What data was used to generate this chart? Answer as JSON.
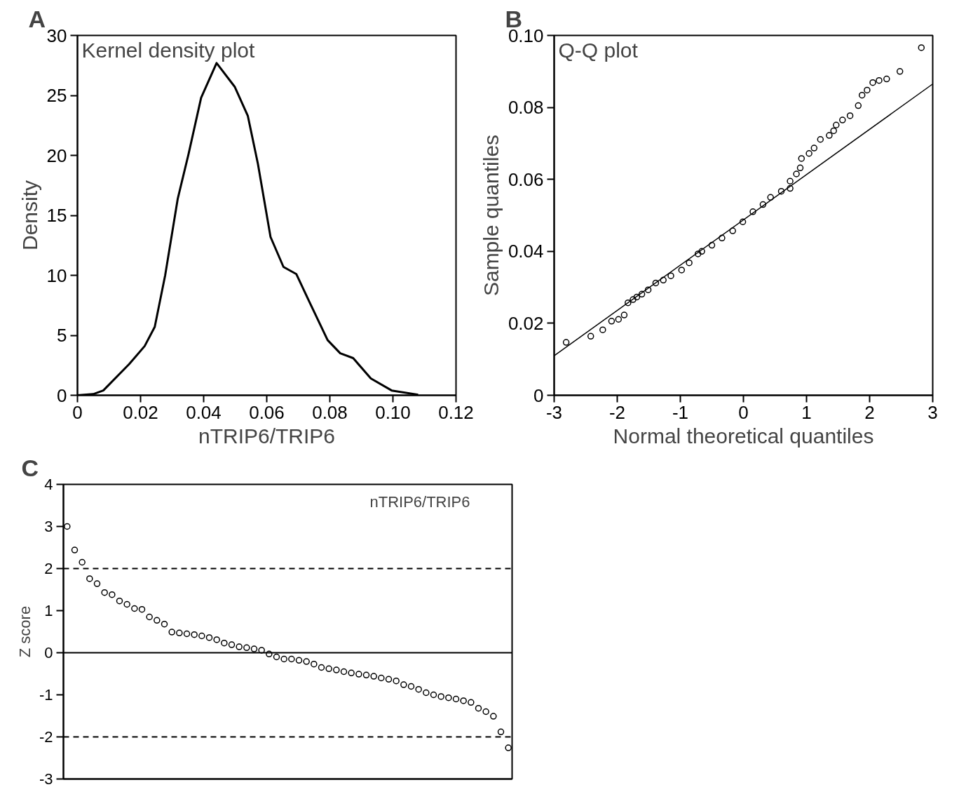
{
  "chart_data": [
    {
      "type": "line",
      "title": "A",
      "xlabel": "nTRIP6/TRIP6",
      "ylabel": "Density",
      "annotations": [
        "Kernel density plot"
      ],
      "x": [
        0,
        0.005,
        0.0082,
        0.0164,
        0.0213,
        0.0245,
        0.0278,
        0.0318,
        0.0352,
        0.0392,
        0.0441,
        0.0499,
        0.054,
        0.0572,
        0.0612,
        0.0653,
        0.0694,
        0.0735,
        0.0793,
        0.0833,
        0.0874,
        0.093,
        0.0996,
        0.108
      ],
      "series": [
        {
          "color": "#000000",
          "values": [
            0,
            0.1,
            0.4,
            2.6,
            4.1,
            5.7,
            10.0,
            16.4,
            20.1,
            24.8,
            27.7,
            25.7,
            23.3,
            19.3,
            13.2,
            10.7,
            10.1,
            7.8,
            4.6,
            3.5,
            3.1,
            1.4,
            0.4,
            0.05
          ]
        }
      ],
      "xlim": [
        0,
        0.12
      ],
      "ylim": [
        0,
        30
      ],
      "xticks": [
        0,
        0.02,
        0.04,
        0.06,
        0.08,
        {
          "value": 0.1,
          "label": "0.10"
        },
        0.12
      ],
      "yticks": [
        0,
        5,
        10,
        15,
        20,
        25,
        30
      ],
      "grid": false,
      "line_style": "solid",
      "marker": "none"
    },
    {
      "type": "scatter",
      "title": "B",
      "xlabel": "Normal theoretical quantiles",
      "ylabel": "Sample quantiles",
      "annotations": [
        "Q-Q plot"
      ],
      "series": [
        {
          "type": "scatter",
          "color": "#000000",
          "marker": "circle",
          "x": [
            -2.81,
            -2.42,
            -2.23,
            -2.09,
            -1.98,
            -1.89,
            -1.83,
            -1.75,
            -1.69,
            -1.61,
            -1.51,
            -1.39,
            -1.27,
            -1.15,
            -0.98,
            -0.86,
            -0.72,
            -0.66,
            -0.5,
            -0.34,
            -0.17,
            -0.01,
            0.15,
            0.31,
            0.43,
            0.6,
            0.74,
            0.74,
            0.84,
            0.9,
            0.92,
            1.04,
            1.12,
            1.22,
            1.36,
            1.43,
            1.47,
            1.57,
            1.69,
            1.82,
            1.88,
            1.96,
            2.05,
            2.15,
            2.27,
            2.48,
            2.82
          ],
          "values": [
            0.0147,
            0.0164,
            0.0182,
            0.0206,
            0.0211,
            0.0223,
            0.0257,
            0.0266,
            0.0273,
            0.0281,
            0.0293,
            0.0312,
            0.032,
            0.0332,
            0.0348,
            0.0368,
            0.0393,
            0.04,
            0.0417,
            0.0437,
            0.0457,
            0.0482,
            0.051,
            0.053,
            0.055,
            0.0567,
            0.0575,
            0.0595,
            0.0615,
            0.0632,
            0.0658,
            0.0672,
            0.0687,
            0.0711,
            0.0722,
            0.0735,
            0.0751,
            0.0765,
            0.0777,
            0.0805,
            0.0834,
            0.0848,
            0.0869,
            0.0875,
            0.0879,
            0.09,
            0.0966
          ]
        },
        {
          "type": "line",
          "color": "#000000",
          "line_style": "solid",
          "x": [
            -3,
            3
          ],
          "values": [
            0.011,
            0.0865
          ]
        }
      ],
      "xlim": [
        -3,
        3
      ],
      "ylim": [
        0,
        0.1
      ],
      "xticks": [
        -3,
        -2,
        -1,
        0,
        1,
        2,
        3
      ],
      "yticks": [
        0,
        0.02,
        0.04,
        0.06,
        0.08,
        {
          "value": 0.1,
          "label": "0.10"
        }
      ],
      "grid": false
    },
    {
      "type": "scatter",
      "title": "C",
      "ylabel": "Z score",
      "annotations": [
        "nTRIP6/TRIP6"
      ],
      "marker": "circle",
      "tick_labels": "y",
      "categories": [
        null,
        null,
        null,
        null,
        null,
        null,
        null,
        null,
        null,
        null,
        null,
        null,
        null,
        null,
        null,
        null,
        null,
        null,
        null,
        null,
        null,
        null,
        null,
        null,
        null,
        null,
        null,
        null,
        null,
        null,
        null,
        null,
        null,
        null,
        null,
        null,
        null,
        null,
        null,
        null,
        null,
        null,
        null,
        null,
        null,
        null,
        null,
        null,
        null,
        null,
        null,
        null,
        null,
        null,
        null,
        null,
        null,
        null,
        null,
        null
      ],
      "series": [
        {
          "color": "#000000",
          "values": [
            3.0,
            2.44,
            2.15,
            1.76,
            1.64,
            1.43,
            1.38,
            1.23,
            1.15,
            1.05,
            1.03,
            0.85,
            0.77,
            0.68,
            0.49,
            0.47,
            0.45,
            0.43,
            0.4,
            0.36,
            0.31,
            0.23,
            0.19,
            0.14,
            0.12,
            0.09,
            0.06,
            -0.03,
            -0.1,
            -0.15,
            -0.15,
            -0.18,
            -0.21,
            -0.27,
            -0.35,
            -0.38,
            -0.41,
            -0.45,
            -0.48,
            -0.51,
            -0.53,
            -0.56,
            -0.6,
            -0.63,
            -0.67,
            -0.76,
            -0.8,
            -0.87,
            -0.95,
            -1.0,
            -1.04,
            -1.07,
            -1.1,
            -1.14,
            -1.18,
            -1.32,
            -1.4,
            -1.51,
            -1.88,
            -2.26
          ]
        }
      ],
      "ylim": [
        -3,
        4
      ],
      "yticks": [
        -3,
        -2,
        -1,
        0,
        1,
        2,
        3,
        4
      ],
      "grid": false,
      "ref_lines": [
        {
          "axis": "y",
          "value": 2,
          "color": "#000000",
          "line_style": "dashed"
        },
        {
          "axis": "y",
          "value": 0,
          "color": "#000000",
          "line_style": "solid"
        },
        {
          "axis": "y",
          "value": -2,
          "color": "#000000",
          "line_style": "dashed"
        }
      ]
    }
  ]
}
